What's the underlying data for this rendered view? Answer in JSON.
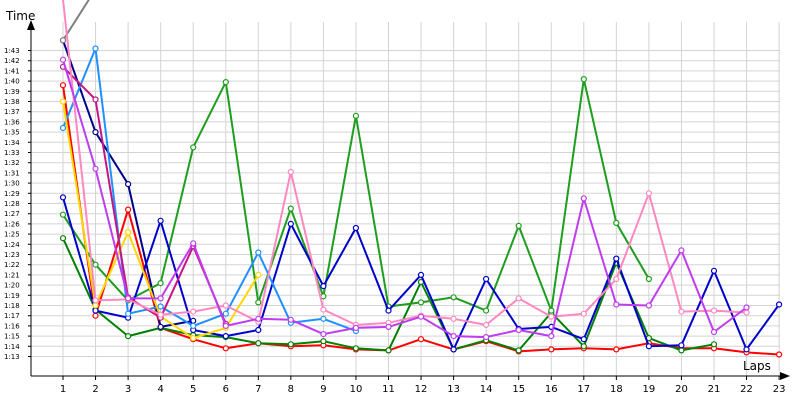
{
  "chart_data": {
    "type": "line",
    "ylabel": "Time",
    "xlabel": "Laps",
    "x": [
      1,
      2,
      3,
      4,
      5,
      6,
      7,
      8,
      9,
      10,
      11,
      12,
      13,
      14,
      15,
      16,
      17,
      18,
      19,
      20,
      21,
      22,
      23
    ],
    "x_tick_labels": [
      "1",
      "2",
      "3",
      "4",
      "5",
      "6",
      "7",
      "8",
      "9",
      "10",
      "11",
      "12",
      "13",
      "14",
      "15",
      "16",
      "17",
      "18",
      "19",
      "20",
      "21",
      "22",
      "23"
    ],
    "y_tick_labels": [
      "1:13",
      "1:14",
      "1:15",
      "1:16",
      "1:17",
      "1:18",
      "1:19",
      "1:20",
      "1:21",
      "1:22",
      "1:23",
      "1:24",
      "1:25",
      "1:26",
      "1:27",
      "1:28",
      "1:29",
      "1:30",
      "1:31",
      "1:32",
      "1:33",
      "1:34",
      "1:35",
      "1:36",
      "1:37",
      "1:38",
      "1:39",
      "1:40",
      "1:41",
      "1:42",
      "1:43"
    ],
    "y_unit": "seconds",
    "ylim": [
      72.3,
      108
    ],
    "grid": true,
    "series": [
      {
        "color": "#ff0000",
        "values": [
          99.6,
          77.0,
          87.4,
          75.8,
          74.7,
          73.8,
          74.3,
          74.0,
          74.1,
          73.7,
          73.6,
          74.7,
          73.7,
          74.5,
          73.5,
          73.7,
          73.8,
          73.7,
          74.3,
          73.8,
          73.8,
          73.4,
          73.2
        ]
      },
      {
        "color": "#008000",
        "values": [
          84.6,
          77.6,
          75.0,
          75.8,
          75.1,
          74.9,
          74.3,
          74.2,
          74.5,
          73.8,
          73.6,
          80.3,
          73.7,
          74.6,
          73.6,
          77.3,
          74.0,
          82.2,
          74.8,
          73.6,
          74.2,
          null,
          null
        ]
      },
      {
        "color": "#00008b",
        "values": [
          104.0,
          95.0,
          89.9,
          75.9,
          76.5,
          null,
          null,
          null,
          null,
          null,
          null,
          null,
          null,
          null,
          null,
          null,
          null,
          null,
          null,
          null,
          null,
          null,
          null
        ]
      },
      {
        "color": "#808080",
        "values": [
          104.0,
          109.0,
          null,
          null,
          null,
          null,
          null,
          null,
          null,
          null,
          null,
          null,
          null,
          null,
          null,
          null,
          null,
          null,
          null,
          null,
          null,
          null,
          null
        ]
      },
      {
        "color": "#1e9e1e",
        "values": [
          86.9,
          82.0,
          78.5,
          80.2,
          93.5,
          99.9,
          78.3,
          87.5,
          78.9,
          96.6,
          77.9,
          78.3,
          78.8,
          77.5,
          85.8,
          77.5,
          100.2,
          86.1,
          80.6,
          null,
          null,
          null,
          null
        ]
      },
      {
        "color": "#0000cd",
        "values": [
          88.6,
          77.5,
          76.8,
          86.3,
          75.6,
          75.0,
          75.6,
          86.0,
          79.9,
          85.6,
          77.5,
          81.0,
          73.7,
          80.6,
          75.7,
          75.9,
          74.7,
          82.6,
          74.0,
          74.1,
          81.4,
          73.7,
          78.1
        ]
      },
      {
        "color": "#1e90ff",
        "values": [
          95.4,
          103.2,
          77.2,
          77.9,
          76.0,
          77.2,
          83.2,
          76.3,
          76.7,
          75.5,
          null,
          null,
          null,
          null,
          null,
          null,
          null,
          null,
          null,
          null,
          null,
          null,
          null
        ]
      },
      {
        "color": "#ffd700",
        "values": [
          98.0,
          78.0,
          85.2,
          76.9,
          74.8,
          75.8,
          81.0,
          null,
          null,
          null,
          null,
          null,
          null,
          null,
          null,
          null,
          null,
          null,
          null,
          null,
          null,
          null,
          null
        ]
      },
      {
        "color": "#c71585",
        "values": [
          101.4,
          98.2,
          78.8,
          76.8,
          83.8,
          76.2,
          null,
          null,
          null,
          null,
          null,
          null,
          null,
          null,
          null,
          null,
          null,
          null,
          null,
          null,
          null,
          null,
          null
        ]
      },
      {
        "color": "#ff88c0",
        "values": [
          108.0,
          78.5,
          78.6,
          77.1,
          77.4,
          78.0,
          76.4,
          91.1,
          77.6,
          76.1,
          76.3,
          77.0,
          76.7,
          76.1,
          78.7,
          76.9,
          77.2,
          80.6,
          89.0,
          77.4,
          77.5,
          77.3,
          null
        ]
      },
      {
        "color": "#c03cf0",
        "values": [
          102.1,
          91.4,
          78.7,
          78.7,
          84.1,
          76.0,
          76.7,
          76.6,
          75.2,
          75.8,
          75.9,
          76.9,
          75.0,
          74.9,
          75.6,
          75.0,
          88.5,
          78.1,
          78.0,
          83.4,
          75.4,
          77.8,
          null
        ]
      }
    ]
  }
}
